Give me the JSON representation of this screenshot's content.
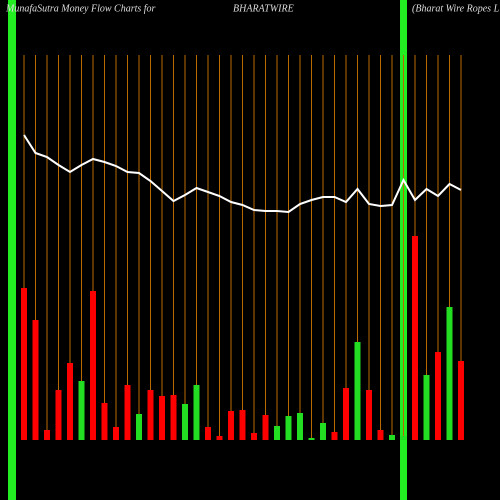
{
  "chart_data": {
    "type": "bar",
    "title": "MunafaSutra  Money Flow  Charts for",
    "symbol": "BHARATWIRE",
    "subtitle": "(Bharat Wire  Ropes L",
    "values": [
      152,
      120,
      10,
      50,
      77,
      59,
      149,
      37,
      13,
      55,
      26,
      50,
      44,
      45,
      36,
      55,
      13,
      4,
      29,
      30,
      7,
      25,
      14,
      24,
      27,
      2,
      17,
      8,
      52,
      98,
      50,
      10,
      5,
      4,
      204,
      65,
      88,
      133,
      79
    ],
    "bar_colors": [
      "#ff0000",
      "#ff0000",
      "#ff0000",
      "#ff0000",
      "#ff0000",
      "#22dd22",
      "#ff0000",
      "#ff0000",
      "#ff0000",
      "#ff0000",
      "#22dd22",
      "#ff0000",
      "#ff0000",
      "#ff0000",
      "#22dd22",
      "#22dd22",
      "#ff0000",
      "#ff0000",
      "#ff0000",
      "#ff0000",
      "#ff0000",
      "#ff0000",
      "#22dd22",
      "#22dd22",
      "#22dd22",
      "#22dd22",
      "#22dd22",
      "#ff0000",
      "#ff0000",
      "#22dd22",
      "#ff0000",
      "#ff0000",
      "#22dd22",
      "#22dd22",
      "#ff0000",
      "#22dd22",
      "#ff0000",
      "#22dd22",
      "#ff0000"
    ],
    "line": {
      "color": "#ffffff",
      "values": [
        305,
        287,
        283,
        275,
        268,
        275,
        281,
        278,
        274,
        268,
        267,
        259,
        249,
        239,
        245,
        252,
        248,
        244,
        238,
        235,
        230,
        229,
        229,
        228,
        236,
        240,
        243,
        243,
        238,
        251,
        236,
        234,
        235,
        260,
        240,
        251,
        244,
        256,
        250
      ]
    },
    "ylim": [
      0,
      440
    ]
  }
}
